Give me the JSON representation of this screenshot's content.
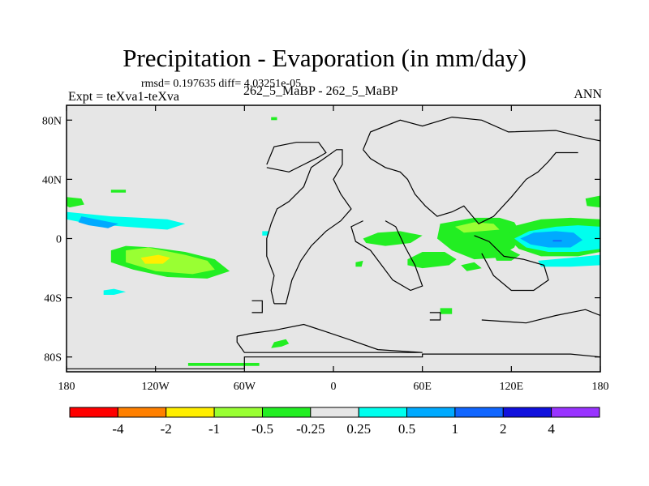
{
  "header": {
    "title": "Precipitation - Evaporation (in mm/day)",
    "stats": "rmsd= 0.197635 diff= 4.03251e-05",
    "expt": "Expt = teXva1-teXva",
    "cases": "262_5_MaBP - 262_5_MaBP",
    "season": "ANN"
  },
  "chart_data": {
    "type": "heatmap",
    "title": "Precipitation - Evaporation (in mm/day)",
    "xlabel": "",
    "ylabel": "",
    "xlim": [
      -180,
      180
    ],
    "ylim": [
      -90,
      90
    ],
    "x_ticks": [
      {
        "value": -180,
        "label": "180"
      },
      {
        "value": -120,
        "label": "120W"
      },
      {
        "value": -60,
        "label": "60W"
      },
      {
        "value": 0,
        "label": "0"
      },
      {
        "value": 60,
        "label": "60E"
      },
      {
        "value": 120,
        "label": "120E"
      },
      {
        "value": 180,
        "label": "180"
      }
    ],
    "y_ticks": [
      {
        "value": 80,
        "label": "80N"
      },
      {
        "value": 40,
        "label": "40N"
      },
      {
        "value": 0,
        "label": "0"
      },
      {
        "value": -40,
        "label": "40S"
      },
      {
        "value": -80,
        "label": "80S"
      }
    ],
    "colorbar": {
      "colors": [
        "#ff0000",
        "#ff8000",
        "#ffee00",
        "#99ff33",
        "#22ee22",
        "#e6e6e6",
        "#00ffee",
        "#00aaff",
        "#1166ff",
        "#1111dd",
        "#9933ff"
      ],
      "labels": [
        "-4",
        "-2",
        "-1",
        "-0.5",
        "-0.25",
        "0.25",
        "0.5",
        "1",
        "2",
        "4"
      ]
    },
    "background_color": "#e6e6e6",
    "fields": [
      {
        "level": "-0.25",
        "color": "#22ee22",
        "points": [
          [
            -180,
            28
          ],
          [
            -170,
            27
          ],
          [
            -168,
            23
          ],
          [
            -178,
            21
          ],
          [
            -180,
            22
          ]
        ]
      },
      {
        "level": "0.25",
        "color": "#00ffee",
        "points": [
          [
            -180,
            18
          ],
          [
            -150,
            15
          ],
          [
            -130,
            14
          ],
          [
            -112,
            13
          ],
          [
            -100,
            10
          ],
          [
            -112,
            6
          ],
          [
            -140,
            8
          ],
          [
            -165,
            10
          ],
          [
            -180,
            13
          ]
        ]
      },
      {
        "level": "0.5",
        "color": "#00aaff",
        "points": [
          [
            -170,
            15
          ],
          [
            -155,
            12
          ],
          [
            -145,
            10
          ],
          [
            -152,
            7
          ],
          [
            -165,
            9
          ],
          [
            -172,
            11
          ]
        ]
      },
      {
        "level": "-0.25",
        "color": "#22ee22",
        "points": [
          [
            -150,
            -8
          ],
          [
            -140,
            -5
          ],
          [
            -122,
            -6
          ],
          [
            -100,
            -9
          ],
          [
            -80,
            -14
          ],
          [
            -70,
            -22
          ],
          [
            -85,
            -27
          ],
          [
            -112,
            -26
          ],
          [
            -135,
            -21
          ],
          [
            -150,
            -16
          ]
        ]
      },
      {
        "level": "-0.5",
        "color": "#99ff33",
        "points": [
          [
            -140,
            -8
          ],
          [
            -125,
            -6
          ],
          [
            -100,
            -11
          ],
          [
            -85,
            -15
          ],
          [
            -80,
            -21
          ],
          [
            -95,
            -24
          ],
          [
            -120,
            -22
          ],
          [
            -140,
            -16
          ]
        ]
      },
      {
        "level": "-1",
        "color": "#ffee00",
        "points": [
          [
            -130,
            -13
          ],
          [
            -118,
            -11
          ],
          [
            -110,
            -13
          ],
          [
            -115,
            -17
          ],
          [
            -127,
            -17
          ]
        ]
      },
      {
        "level": "0.25",
        "color": "#00ffee",
        "points": [
          [
            -155,
            -35
          ],
          [
            -148,
            -34
          ],
          [
            -140,
            -36
          ],
          [
            -148,
            -38
          ],
          [
            -155,
            -38
          ]
        ]
      },
      {
        "level": "-0.25",
        "color": "#22ee22",
        "points": [
          [
            -150,
            33
          ],
          [
            -140,
            33
          ],
          [
            -140,
            31
          ],
          [
            -150,
            31
          ]
        ]
      },
      {
        "level": "-0.25",
        "color": "#22ee22",
        "points": [
          [
            -42,
            82
          ],
          [
            -38,
            82
          ],
          [
            -38,
            80
          ],
          [
            -42,
            80
          ]
        ]
      },
      {
        "level": "-0.25",
        "color": "#22ee22",
        "points": [
          [
            -40,
            -70
          ],
          [
            -32,
            -68
          ],
          [
            -30,
            -71
          ],
          [
            -35,
            -73
          ],
          [
            -42,
            -74
          ]
        ]
      },
      {
        "level": "-0.25",
        "color": "#22ee22",
        "points": [
          [
            -98,
            -84
          ],
          [
            -50,
            -84
          ],
          [
            -50,
            -86
          ],
          [
            -98,
            -86
          ]
        ]
      },
      {
        "level": "-0.25",
        "color": "#22ee22",
        "points": [
          [
            20,
            0
          ],
          [
            30,
            4
          ],
          [
            45,
            5
          ],
          [
            60,
            2
          ],
          [
            52,
            -3
          ],
          [
            35,
            -5
          ],
          [
            22,
            -3
          ]
        ]
      },
      {
        "level": "-0.25",
        "color": "#22ee22",
        "points": [
          [
            50,
            -14
          ],
          [
            60,
            -9
          ],
          [
            75,
            -9
          ],
          [
            83,
            -14
          ],
          [
            78,
            -18
          ],
          [
            60,
            -20
          ],
          [
            50,
            -18
          ]
        ]
      },
      {
        "level": "-0.25",
        "color": "#22ee22",
        "points": [
          [
            72,
            10
          ],
          [
            95,
            14
          ],
          [
            112,
            14
          ],
          [
            122,
            11
          ],
          [
            126,
            4
          ],
          [
            122,
            -6
          ],
          [
            110,
            -13
          ],
          [
            95,
            -14
          ],
          [
            80,
            -8
          ],
          [
            70,
            0
          ]
        ]
      },
      {
        "level": "-0.5",
        "color": "#99ff33",
        "points": [
          [
            82,
            8
          ],
          [
            95,
            11
          ],
          [
            108,
            10
          ],
          [
            112,
            6
          ],
          [
            100,
            5
          ],
          [
            88,
            4
          ]
        ]
      },
      {
        "level": "-0.25",
        "color": "#22ee22",
        "points": [
          [
            108,
            -10
          ],
          [
            118,
            -7
          ],
          [
            126,
            -11
          ],
          [
            120,
            -15
          ],
          [
            110,
            -15
          ]
        ]
      },
      {
        "level": "-0.25",
        "color": "#22ee22",
        "points": [
          [
            86,
            -18
          ],
          [
            95,
            -16
          ],
          [
            100,
            -20
          ],
          [
            90,
            -22
          ]
        ]
      },
      {
        "level": "-0.25",
        "color": "#22ee22",
        "points": [
          [
            120,
            8
          ],
          [
            140,
            13
          ],
          [
            160,
            14
          ],
          [
            180,
            13
          ],
          [
            180,
            -9
          ],
          [
            165,
            -12
          ],
          [
            140,
            -12
          ],
          [
            125,
            -7
          ],
          [
            118,
            0
          ]
        ]
      },
      {
        "level": "0.25",
        "color": "#00ffee",
        "points": [
          [
            122,
            0
          ],
          [
            132,
            5
          ],
          [
            150,
            8
          ],
          [
            165,
            9
          ],
          [
            180,
            8
          ],
          [
            180,
            -7
          ],
          [
            165,
            -9
          ],
          [
            145,
            -9
          ],
          [
            130,
            -6
          ]
        ]
      },
      {
        "level": "0.5",
        "color": "#00aaff",
        "points": [
          [
            126,
            0
          ],
          [
            135,
            4
          ],
          [
            150,
            5
          ],
          [
            162,
            4
          ],
          [
            168,
            -1
          ],
          [
            160,
            -6
          ],
          [
            145,
            -6
          ],
          [
            133,
            -4
          ]
        ]
      },
      {
        "level": "1",
        "color": "#1166ff",
        "points": [
          [
            148,
            -1
          ],
          [
            154,
            -1
          ],
          [
            154,
            -2
          ],
          [
            148,
            -2
          ]
        ]
      },
      {
        "level": "0.25",
        "color": "#00ffee",
        "points": [
          [
            138,
            -15
          ],
          [
            160,
            -13
          ],
          [
            180,
            -11
          ],
          [
            180,
            -18
          ],
          [
            160,
            -19
          ],
          [
            140,
            -19
          ]
        ]
      },
      {
        "level": "-0.25",
        "color": "#22ee22",
        "points": [
          [
            170,
            27
          ],
          [
            180,
            29
          ],
          [
            180,
            21
          ],
          [
            171,
            22
          ]
        ]
      },
      {
        "level": "-0.25",
        "color": "#22ee22",
        "points": [
          [
            15,
            -16
          ],
          [
            20,
            -15
          ],
          [
            19,
            -19
          ],
          [
            15,
            -19
          ]
        ]
      },
      {
        "level": "-0.25",
        "color": "#22ee22",
        "points": [
          [
            72,
            -47
          ],
          [
            80,
            -47
          ],
          [
            80,
            -51
          ],
          [
            72,
            -51
          ]
        ]
      },
      {
        "level": "0.25",
        "color": "#00ffee",
        "points": [
          [
            -48,
            5
          ],
          [
            -44,
            5
          ],
          [
            -44,
            2
          ],
          [
            -48,
            2
          ]
        ]
      }
    ],
    "coastlines": [
      [
        [
          -180,
          -80
        ],
        [
          -180,
          -88
        ],
        [
          -60,
          -88
        ],
        [
          -60,
          -80
        ],
        [
          0,
          -80
        ],
        [
          60,
          -80
        ],
        [
          60,
          -78
        ],
        [
          100,
          -78
        ],
        [
          120,
          -78
        ],
        [
          160,
          -78
        ],
        [
          180,
          -80
        ]
      ],
      [
        [
          -65,
          -66
        ],
        [
          -55,
          -64
        ],
        [
          -40,
          -62
        ],
        [
          -20,
          -58
        ],
        [
          -5,
          -63
        ],
        [
          10,
          -68
        ],
        [
          30,
          -75
        ],
        [
          60,
          -77
        ],
        [
          -60,
          -77
        ],
        [
          -65,
          -70
        ],
        [
          -65,
          -66
        ]
      ],
      [
        [
          -45,
          50
        ],
        [
          -40,
          62
        ],
        [
          -25,
          65
        ],
        [
          -10,
          65
        ],
        [
          -5,
          58
        ],
        [
          -10,
          55
        ],
        [
          -20,
          50
        ],
        [
          -30,
          45
        ],
        [
          -45,
          48
        ]
      ],
      [
        [
          -40,
          -44
        ],
        [
          -42,
          -35
        ],
        [
          -40,
          -25
        ],
        [
          -45,
          -12
        ],
        [
          -45,
          0
        ],
        [
          -42,
          10
        ],
        [
          -38,
          20
        ],
        [
          -30,
          25
        ],
        [
          -20,
          35
        ],
        [
          -15,
          48
        ],
        [
          -5,
          55
        ],
        [
          2,
          60
        ],
        [
          6,
          60
        ],
        [
          6,
          50
        ],
        [
          0,
          40
        ],
        [
          5,
          30
        ],
        [
          12,
          20
        ],
        [
          5,
          12
        ],
        [
          -5,
          5
        ],
        [
          -15,
          -5
        ],
        [
          -22,
          -15
        ],
        [
          -28,
          -28
        ],
        [
          -32,
          -44
        ],
        [
          -40,
          -44
        ]
      ],
      [
        [
          -55,
          -42
        ],
        [
          -48,
          -42
        ],
        [
          -48,
          -50
        ],
        [
          -55,
          -50
        ]
      ],
      [
        [
          20,
          60
        ],
        [
          25,
          72
        ],
        [
          45,
          80
        ],
        [
          60,
          76
        ],
        [
          80,
          82
        ],
        [
          100,
          80
        ],
        [
          118,
          72
        ],
        [
          150,
          73
        ],
        [
          170,
          68
        ],
        [
          180,
          66
        ]
      ],
      [
        [
          20,
          60
        ],
        [
          25,
          54
        ],
        [
          35,
          48
        ],
        [
          45,
          45
        ],
        [
          50,
          40
        ],
        [
          55,
          30
        ],
        [
          62,
          22
        ],
        [
          70,
          15
        ],
        [
          80,
          18
        ],
        [
          88,
          22
        ],
        [
          98,
          10
        ],
        [
          108,
          15
        ],
        [
          120,
          28
        ],
        [
          130,
          40
        ],
        [
          138,
          45
        ],
        [
          145,
          52
        ],
        [
          150,
          58
        ],
        [
          165,
          58
        ]
      ],
      [
        [
          20,
          12
        ],
        [
          12,
          8
        ],
        [
          15,
          -2
        ],
        [
          25,
          -8
        ],
        [
          40,
          -28
        ],
        [
          52,
          -35
        ],
        [
          60,
          -32
        ],
        [
          55,
          -18
        ],
        [
          48,
          -5
        ],
        [
          42,
          8
        ],
        [
          35,
          12
        ]
      ],
      [
        [
          95,
          2
        ],
        [
          105,
          -2
        ],
        [
          115,
          -12
        ],
        [
          128,
          -14
        ],
        [
          142,
          -18
        ],
        [
          145,
          -28
        ],
        [
          135,
          -35
        ],
        [
          120,
          -35
        ],
        [
          108,
          -25
        ],
        [
          100,
          -10
        ]
      ],
      [
        [
          65,
          -50
        ],
        [
          72,
          -50
        ],
        [
          72,
          -55
        ],
        [
          65,
          -55
        ]
      ],
      [
        [
          100,
          -55
        ],
        [
          130,
          -57
        ],
        [
          150,
          -52
        ],
        [
          170,
          -48
        ],
        [
          180,
          -52
        ]
      ]
    ]
  }
}
